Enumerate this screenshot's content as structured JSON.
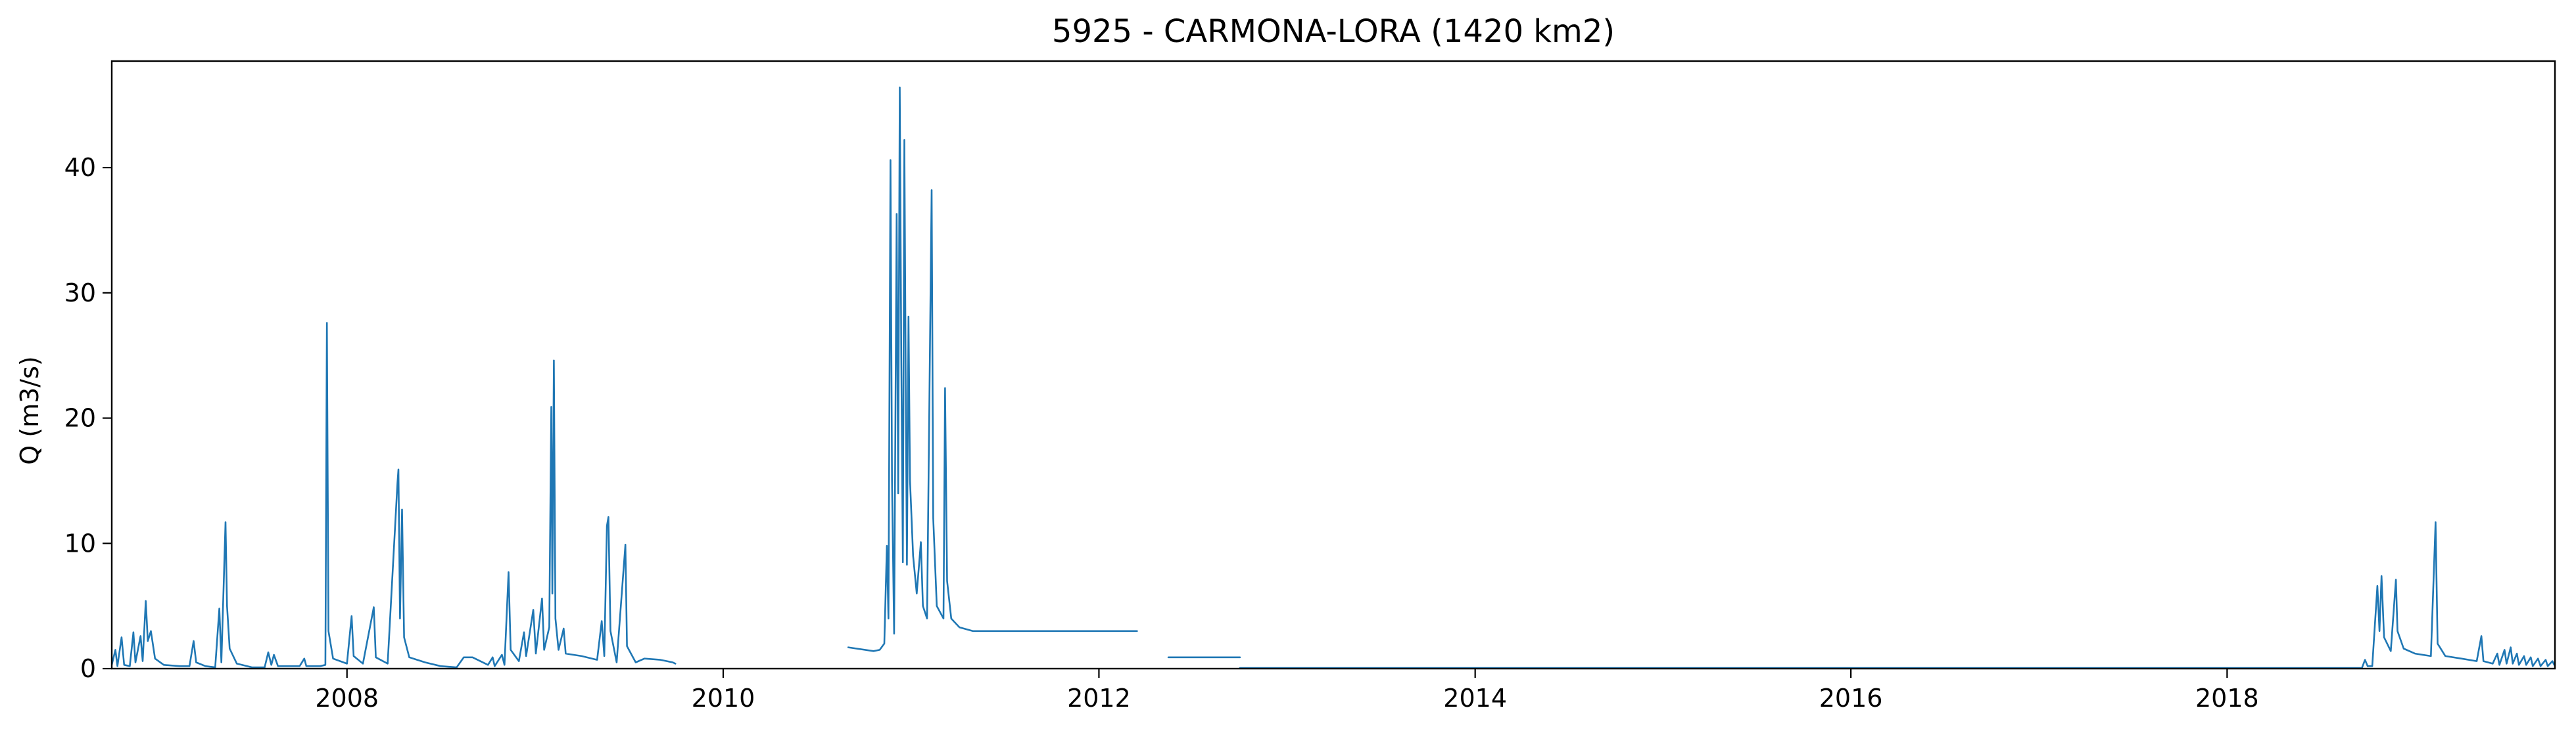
{
  "chart_data": {
    "type": "line",
    "title": "5925 - CARMONA-LORA (1420 km2)",
    "xlabel": "",
    "ylabel": "Q (m3/s)",
    "xlim": [
      "2006-10-01",
      "2019-09-30"
    ],
    "ylim": [
      0,
      48.5
    ],
    "grid": false,
    "x_ticks": [
      "2008",
      "2010",
      "2012",
      "2014",
      "2016",
      "2018"
    ],
    "y_ticks": [
      0,
      10,
      20,
      30,
      40
    ],
    "series": [
      {
        "color": "#1f77b4",
        "segments": [
          [
            [
              "2006-10-01",
              0.3
            ],
            [
              "2006-10-08",
              1.5
            ],
            [
              "2006-10-12",
              0.2
            ],
            [
              "2006-10-20",
              2.5
            ],
            [
              "2006-10-25",
              0.3
            ],
            [
              "2006-11-05",
              0.2
            ],
            [
              "2006-11-12",
              2.9
            ],
            [
              "2006-11-16",
              0.5
            ],
            [
              "2006-11-26",
              2.6
            ],
            [
              "2006-11-30",
              0.6
            ],
            [
              "2006-12-06",
              5.4
            ],
            [
              "2006-12-10",
              2.2
            ],
            [
              "2006-12-16",
              3.0
            ],
            [
              "2006-12-24",
              0.8
            ],
            [
              "2007-01-10",
              0.3
            ],
            [
              "2007-02-10",
              0.2
            ],
            [
              "2007-03-01",
              0.2
            ],
            [
              "2007-03-05",
              1.2
            ],
            [
              "2007-03-09",
              2.2
            ],
            [
              "2007-03-14",
              0.5
            ],
            [
              "2007-04-01",
              0.2
            ],
            [
              "2007-04-20",
              0.1
            ],
            [
              "2007-04-28",
              4.8
            ],
            [
              "2007-05-02",
              0.5
            ],
            [
              "2007-05-10",
              11.7
            ],
            [
              "2007-05-13",
              5.0
            ],
            [
              "2007-05-18",
              1.6
            ],
            [
              "2007-06-01",
              0.4
            ],
            [
              "2007-07-01",
              0.1
            ],
            [
              "2007-07-25",
              0.1
            ],
            [
              "2007-08-01",
              1.3
            ],
            [
              "2007-08-07",
              0.3
            ],
            [
              "2007-08-12",
              1.1
            ],
            [
              "2007-08-20",
              0.2
            ],
            [
              "2007-10-01",
              0.2
            ],
            [
              "2007-10-10",
              0.8
            ],
            [
              "2007-10-14",
              0.2
            ],
            [
              "2007-11-10",
              0.2
            ],
            [
              "2007-11-20",
              0.3
            ],
            [
              "2007-11-23",
              27.6
            ],
            [
              "2007-11-26",
              3.0
            ],
            [
              "2007-12-05",
              0.8
            ],
            [
              "2008-01-01",
              0.4
            ],
            [
              "2008-01-10",
              4.2
            ],
            [
              "2008-01-14",
              1.0
            ],
            [
              "2008-02-01",
              0.4
            ],
            [
              "2008-02-22",
              4.9
            ],
            [
              "2008-02-26",
              0.9
            ],
            [
              "2008-03-20",
              0.4
            ],
            [
              "2008-04-08",
              14.8
            ],
            [
              "2008-04-10",
              15.9
            ],
            [
              "2008-04-13",
              4.0
            ],
            [
              "2008-04-17",
              12.7
            ],
            [
              "2008-04-21",
              2.5
            ],
            [
              "2008-05-01",
              0.9
            ],
            [
              "2008-06-01",
              0.5
            ],
            [
              "2008-07-01",
              0.2
            ],
            [
              "2008-08-01",
              0.1
            ],
            [
              "2008-08-15",
              0.9
            ],
            [
              "2008-09-01",
              0.9
            ],
            [
              "2008-10-01",
              0.3
            ],
            [
              "2008-10-10",
              0.9
            ],
            [
              "2008-10-14",
              0.2
            ],
            [
              "2008-10-28",
              1.1
            ],
            [
              "2008-11-02",
              0.3
            ],
            [
              "2008-11-10",
              7.7
            ],
            [
              "2008-11-14",
              1.5
            ],
            [
              "2008-11-30",
              0.6
            ],
            [
              "2008-12-10",
              2.9
            ],
            [
              "2008-12-14",
              1.0
            ],
            [
              "2008-12-28",
              4.7
            ],
            [
              "2009-01-02",
              1.2
            ],
            [
              "2009-01-14",
              5.6
            ],
            [
              "2009-01-18",
              1.5
            ],
            [
              "2009-01-28",
              3.3
            ],
            [
              "2009-02-01",
              20.9
            ],
            [
              "2009-02-03",
              6.0
            ],
            [
              "2009-02-06",
              24.6
            ],
            [
              "2009-02-09",
              4.0
            ],
            [
              "2009-02-15",
              1.5
            ],
            [
              "2009-02-25",
              3.2
            ],
            [
              "2009-03-01",
              1.2
            ],
            [
              "2009-04-01",
              1.0
            ],
            [
              "2009-05-01",
              0.7
            ],
            [
              "2009-05-10",
              3.8
            ],
            [
              "2009-05-15",
              1.0
            ],
            [
              "2009-05-20",
              11.4
            ],
            [
              "2009-05-23",
              12.1
            ],
            [
              "2009-05-27",
              3.0
            ],
            [
              "2009-06-08",
              0.5
            ],
            [
              "2009-06-25",
              9.9
            ],
            [
              "2009-06-28",
              1.8
            ],
            [
              "2009-07-15",
              0.5
            ],
            [
              "2009-08-01",
              0.8
            ],
            [
              "2009-09-01",
              0.7
            ],
            [
              "2009-09-25",
              0.5
            ],
            [
              "2009-09-30",
              0.4
            ]
          ],
          [
            [
              "2010-09-01",
              1.7
            ],
            [
              "2010-10-20",
              1.4
            ],
            [
              "2010-11-01",
              1.5
            ],
            [
              "2010-11-10",
              2.0
            ],
            [
              "2010-11-15",
              9.8
            ],
            [
              "2010-11-18",
              4.0
            ],
            [
              "2010-11-22",
              40.6
            ],
            [
              "2010-11-25",
              15.0
            ],
            [
              "2010-11-29",
              2.8
            ],
            [
              "2010-12-04",
              36.3
            ],
            [
              "2010-12-07",
              14.0
            ],
            [
              "2010-12-10",
              46.4
            ],
            [
              "2010-12-13",
              25.0
            ],
            [
              "2010-12-16",
              8.5
            ],
            [
              "2010-12-19",
              42.2
            ],
            [
              "2010-12-22",
              20.0
            ],
            [
              "2010-12-24",
              8.3
            ],
            [
              "2010-12-27",
              28.1
            ],
            [
              "2010-12-30",
              15.0
            ],
            [
              "2011-01-05",
              9.0
            ],
            [
              "2011-01-12",
              6.0
            ],
            [
              "2011-01-20",
              10.1
            ],
            [
              "2011-01-24",
              5.0
            ],
            [
              "2011-02-01",
              4.0
            ],
            [
              "2011-02-10",
              38.2
            ],
            [
              "2011-02-13",
              12.0
            ],
            [
              "2011-02-20",
              5.0
            ],
            [
              "2011-03-05",
              4.0
            ],
            [
              "2011-03-08",
              22.4
            ],
            [
              "2011-03-12",
              7.0
            ],
            [
              "2011-03-20",
              4.0
            ],
            [
              "2011-04-05",
              3.3
            ],
            [
              "2011-05-01",
              3.0
            ],
            [
              "2011-06-01",
              3.0
            ],
            [
              "2011-09-01",
              3.0
            ],
            [
              "2011-12-01",
              3.0
            ],
            [
              "2012-03-15",
              3.0
            ]
          ],
          [
            [
              "2012-05-15",
              0.9
            ],
            [
              "2012-10-01",
              0.9
            ]
          ],
          [
            [
              "2012-10-01",
              0.05
            ],
            [
              "2018-09-20",
              0.05
            ],
            [
              "2018-09-26",
              0.7
            ],
            [
              "2018-10-01",
              0.2
            ],
            [
              "2018-10-10",
              0.2
            ],
            [
              "2018-10-20",
              6.6
            ],
            [
              "2018-10-24",
              3.0
            ],
            [
              "2018-10-28",
              7.4
            ],
            [
              "2018-11-02",
              2.5
            ],
            [
              "2018-11-15",
              1.4
            ],
            [
              "2018-11-25",
              7.1
            ],
            [
              "2018-11-28",
              3.0
            ],
            [
              "2018-12-10",
              1.6
            ],
            [
              "2019-01-01",
              1.2
            ],
            [
              "2019-02-01",
              1.0
            ],
            [
              "2019-02-10",
              11.7
            ],
            [
              "2019-02-14",
              2.0
            ],
            [
              "2019-03-01",
              1.0
            ],
            [
              "2019-04-01",
              0.8
            ],
            [
              "2019-05-01",
              0.6
            ],
            [
              "2019-05-10",
              2.6
            ],
            [
              "2019-05-14",
              0.6
            ],
            [
              "2019-06-01",
              0.4
            ],
            [
              "2019-06-10",
              1.2
            ],
            [
              "2019-06-14",
              0.3
            ],
            [
              "2019-06-24",
              1.5
            ],
            [
              "2019-06-28",
              0.4
            ],
            [
              "2019-07-06",
              1.7
            ],
            [
              "2019-07-10",
              0.4
            ],
            [
              "2019-07-18",
              1.2
            ],
            [
              "2019-07-22",
              0.3
            ],
            [
              "2019-08-01",
              1.0
            ],
            [
              "2019-08-05",
              0.3
            ],
            [
              "2019-08-14",
              0.9
            ],
            [
              "2019-08-18",
              0.2
            ],
            [
              "2019-08-28",
              0.8
            ],
            [
              "2019-09-02",
              0.2
            ],
            [
              "2019-09-12",
              0.7
            ],
            [
              "2019-09-16",
              0.2
            ],
            [
              "2019-09-25",
              0.6
            ],
            [
              "2019-09-30",
              0.2
            ]
          ]
        ]
      }
    ]
  }
}
